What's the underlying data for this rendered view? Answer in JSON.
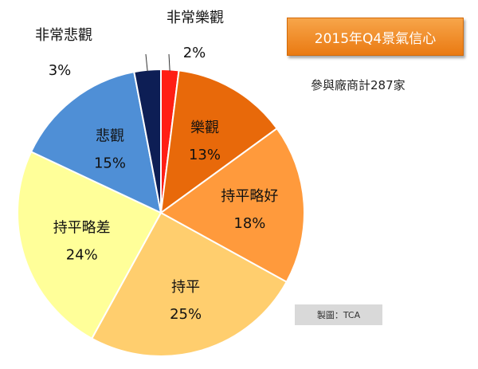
{
  "chart_data": {
    "type": "pie",
    "title": "2015年Q4景氣信心",
    "subtitle": "參與廠商計287家",
    "credit": "製圖：TCA",
    "slices": [
      {
        "label": "非常樂觀",
        "value": 2,
        "display": "2%",
        "color": "#ff1e14"
      },
      {
        "label": "樂觀",
        "value": 13,
        "display": "13%",
        "color": "#e8690a"
      },
      {
        "label": "持平略好",
        "value": 18,
        "display": "18%",
        "color": "#ff9a3c"
      },
      {
        "label": "持平",
        "value": 25,
        "display": "25%",
        "color": "#ffce6e"
      },
      {
        "label": "持平略差",
        "value": 24,
        "display": "24%",
        "color": "#ffff99"
      },
      {
        "label": "悲觀",
        "value": 15,
        "display": "15%",
        "color": "#4f8fd6"
      },
      {
        "label": "非常悲觀",
        "value": 3,
        "display": "3%",
        "color": "#0d1e55"
      }
    ]
  }
}
